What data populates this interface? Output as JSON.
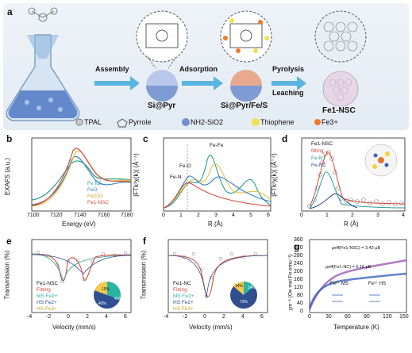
{
  "panel_a": {
    "letter": "a",
    "steps": [
      "Assembly",
      "Adsorption",
      "Pyrolysis",
      "Leaching"
    ],
    "stages": [
      "Si@Pyr",
      "Si@Pyr/Fe/S",
      "Fe1-NSC"
    ],
    "legend": [
      "TPAL",
      "Pyrrole",
      "NH2-SiO2",
      "Thiophene",
      "Fe3+"
    ],
    "colors": {
      "silica": "#6f8fd1",
      "thiophene": "#f4e04d",
      "fe": "#f07a2a",
      "arrow": "#5ab4e0"
    }
  },
  "panel_b": {
    "letter": "b",
    "ylabel": "EXAFS (a.u.)",
    "xlabel": "Energy (eV)",
    "xticks": [
      "7100",
      "7120",
      "7140",
      "7160",
      "7180"
    ],
    "legend": [
      "Fe foil",
      "FeO",
      "Fe2O3",
      "Fe1-NSC"
    ],
    "colors": [
      "#2a9d8f",
      "#3b82c4",
      "#e5c24a",
      "#d64b3a"
    ]
  },
  "panel_c": {
    "letter": "c",
    "ylabel": "|FTk³χ(k)| (Å⁻⁴)",
    "xlabel": "R (Å)",
    "xticks": [
      "0",
      "1",
      "2",
      "3",
      "4",
      "5",
      "6"
    ],
    "annotations": [
      "Fe-Fe",
      "Fe-O",
      "Fe-N"
    ]
  },
  "panel_d": {
    "letter": "d",
    "ylabel": "|FTk³χ(k)| (Å⁻⁴)",
    "xlabel": "R (Å)",
    "xticks": [
      "0",
      "1",
      "2",
      "3",
      "4"
    ],
    "legend": [
      "Fe1-NSC",
      "fitting",
      "Fe-N1",
      "Fe-N2"
    ],
    "atoms": [
      "S",
      "N",
      "Fe"
    ]
  },
  "panel_e": {
    "letter": "e",
    "ylabel": "Transmission (%)",
    "xlabel": "Velocity (mm/s)",
    "xticks": [
      "-4",
      "-2",
      "0",
      "2",
      "4",
      "6"
    ],
    "legend": [
      "Fe1-NSC",
      "Fitting",
      "MS Fe2+",
      "HS Fe2+",
      "HS Fe3+"
    ],
    "pie": [
      {
        "label": "19%",
        "value": 19,
        "color": "#f2c94c"
      },
      {
        "label": "41%",
        "value": 41,
        "color": "#2bb3a3"
      },
      {
        "label": "40%",
        "value": 40,
        "color": "#2f4f8f"
      }
    ]
  },
  "panel_f": {
    "letter": "f",
    "ylabel": "Transmission (%)",
    "xlabel": "Velocity (mm/s)",
    "xticks": [
      "-4",
      "-2",
      "0",
      "2",
      "4",
      "6"
    ],
    "legend": [
      "Fe1-NC",
      "Fitting",
      "MS Fe2+",
      "HS Fe2+",
      "HS Fe3+"
    ],
    "pie": [
      {
        "label": "14%",
        "value": 14,
        "color": "#f2c94c"
      },
      {
        "label": "14%",
        "value": 14,
        "color": "#2bb3a3"
      },
      {
        "label": "72%",
        "value": 72,
        "color": "#2f4f8f"
      }
    ]
  },
  "panel_g": {
    "letter": "g",
    "ylabel": "χm⁻¹ (Oe mol Fe emu⁻¹)",
    "xlabel": "Temperature (K)",
    "xticks": [
      "0",
      "30",
      "60",
      "90",
      "120",
      "150"
    ],
    "yticks": [
      "0",
      "40",
      "80",
      "120",
      "160",
      "200",
      "240",
      "280",
      "320",
      "360"
    ],
    "annotations": [
      "μeff(Fe1-NSC) = 3.43 μB",
      "μeff(Fe1-NC) = 6.16 μB",
      "Fe²⁺ MS",
      "Fe³⁺ HS"
    ]
  }
}
